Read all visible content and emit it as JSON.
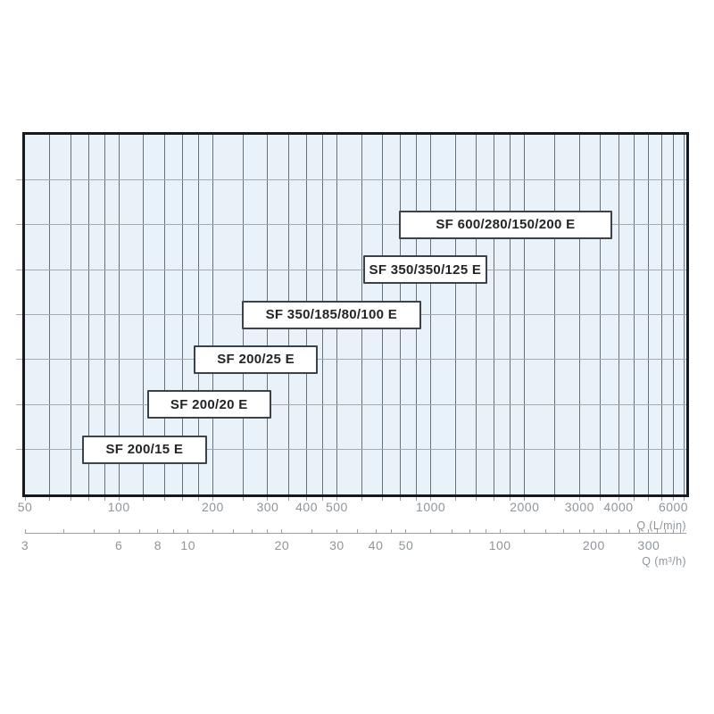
{
  "colors": {
    "page_bg": "#ffffff",
    "plot_bg": "#e9f2f9",
    "grid_vertical": "#66717c",
    "grid_horizontal": "#a4aab0",
    "plot_border": "#17191c",
    "box_border": "#3d4248",
    "box_bg": "#ffffff",
    "box_text": "#222527",
    "axis_text": "#8f959a"
  },
  "chart_data": {
    "type": "bar",
    "subtype": "horizontal-range-label-boxes",
    "title": "",
    "scale": "log",
    "grid": true,
    "legend": "none",
    "plot_rows": 8,
    "x_axis_primary": {
      "title": "Q (L/min)",
      "domain": [
        50,
        6600
      ],
      "labeled_ticks": [
        50,
        100,
        200,
        300,
        400,
        500,
        1000,
        2000,
        3000,
        4000,
        6000
      ],
      "gridlines": [
        60,
        70,
        80,
        90,
        100,
        120,
        140,
        160,
        180,
        200,
        250,
        300,
        350,
        400,
        450,
        500,
        600,
        700,
        800,
        900,
        1000,
        1200,
        1400,
        1600,
        1800,
        2000,
        2500,
        3000,
        3500,
        4000,
        4500,
        5000,
        5500,
        6000,
        6500
      ]
    },
    "x_axis_secondary": {
      "title": "Q (m³/h)",
      "domain": [
        3,
        396
      ],
      "labeled_ticks": [
        3,
        6,
        8,
        10,
        20,
        30,
        40,
        50,
        100,
        200,
        300
      ],
      "ticks": [
        3,
        4,
        5,
        6,
        7,
        8,
        9,
        10,
        12,
        14,
        16,
        18,
        20,
        25,
        30,
        35,
        40,
        45,
        50,
        60,
        70,
        80,
        90,
        100,
        120,
        140,
        160,
        180,
        200,
        220,
        240,
        260,
        280,
        300,
        320,
        340,
        360,
        380
      ]
    },
    "series": [
      {
        "name": "SF 600/280/150/200 E",
        "row": 2,
        "q_lmin": [
          790,
          3820
        ]
      },
      {
        "name": "SF 350/350/125 E",
        "row": 3,
        "q_lmin": [
          606,
          1520
        ]
      },
      {
        "name": "SF 350/185/80/100 E",
        "row": 4,
        "q_lmin": [
          248,
          930
        ]
      },
      {
        "name": "SF 200/25 E",
        "row": 5,
        "q_lmin": [
          174,
          434
        ]
      },
      {
        "name": "SF 200/20 E",
        "row": 6,
        "q_lmin": [
          123,
          308
        ]
      },
      {
        "name": "SF 200/15 E",
        "row": 7,
        "q_lmin": [
          76,
          192
        ]
      }
    ]
  }
}
